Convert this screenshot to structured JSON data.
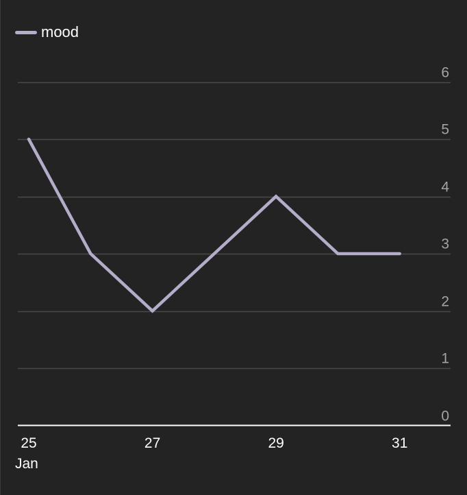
{
  "chart_data": {
    "type": "line",
    "series": [
      {
        "name": "mood",
        "color": "#b4acc8",
        "x": [
          "2024-01-25",
          "2024-01-26",
          "2024-01-27",
          "2024-01-28",
          "2024-01-29",
          "2024-01-30",
          "2024-01-31"
        ],
        "values": [
          5,
          3,
          2,
          3,
          4,
          3,
          3
        ]
      }
    ],
    "xlim": [
      "2024-01-25",
      "2024-02-01"
    ],
    "ylim": [
      0,
      6
    ],
    "x_ticks": [
      {
        "x": "2024-01-25",
        "label": "25",
        "sublabel": "Jan"
      },
      {
        "x": "2024-01-27",
        "label": "27"
      },
      {
        "x": "2024-01-29",
        "label": "29"
      },
      {
        "x": "2024-01-31",
        "label": "31"
      }
    ],
    "y_ticks": [
      0,
      1,
      2,
      3,
      4,
      5,
      6
    ],
    "yaxis_position": "right",
    "grid": true,
    "legend_position": "top-left",
    "background_color": "#232323",
    "grid_color": "#4a4a4a",
    "axis_color": "#ffffff"
  }
}
